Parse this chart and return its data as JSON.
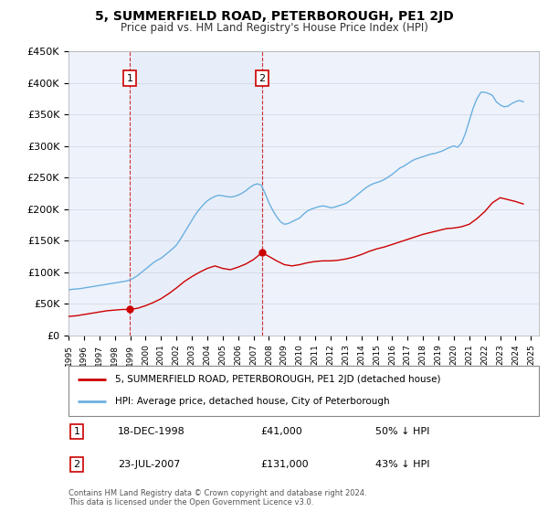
{
  "title": "5, SUMMERFIELD ROAD, PETERBOROUGH, PE1 2JD",
  "subtitle": "Price paid vs. HM Land Registry's House Price Index (HPI)",
  "background_color": "#ffffff",
  "plot_bg_color": "#eef2fb",
  "grid_color": "#d8dde8",
  "xlim": [
    1995.0,
    2025.5
  ],
  "ylim": [
    0,
    450000
  ],
  "yticks": [
    0,
    50000,
    100000,
    150000,
    200000,
    250000,
    300000,
    350000,
    400000,
    450000
  ],
  "ytick_labels": [
    "£0",
    "£50K",
    "£100K",
    "£150K",
    "£200K",
    "£250K",
    "£300K",
    "£350K",
    "£400K",
    "£450K"
  ],
  "xtick_years": [
    1995,
    1996,
    1997,
    1998,
    1999,
    2000,
    2001,
    2002,
    2003,
    2004,
    2005,
    2006,
    2007,
    2008,
    2009,
    2010,
    2011,
    2012,
    2013,
    2014,
    2015,
    2016,
    2017,
    2018,
    2019,
    2020,
    2021,
    2022,
    2023,
    2024,
    2025
  ],
  "hpi_line_color": "#6ab0e0",
  "price_line_color": "#cc0000",
  "marker_color": "#cc0000",
  "sale1_x": 1998.97,
  "sale1_y": 41000,
  "sale1_label": "1",
  "sale2_x": 2007.55,
  "sale2_y": 131000,
  "sale2_label": "2",
  "legend_house_label": "5, SUMMERFIELD ROAD, PETERBOROUGH, PE1 2JD (detached house)",
  "legend_hpi_label": "HPI: Average price, detached house, City of Peterborough",
  "table_row1": [
    "1",
    "18-DEC-1998",
    "£41,000",
    "50% ↓ HPI"
  ],
  "table_row2": [
    "2",
    "23-JUL-2007",
    "£131,000",
    "43% ↓ HPI"
  ],
  "footnote": "Contains HM Land Registry data © Crown copyright and database right 2024.\nThis data is licensed under the Open Government Licence v3.0.",
  "hpi_data_x": [
    1995.0,
    1995.25,
    1995.5,
    1995.75,
    1996.0,
    1996.25,
    1996.5,
    1996.75,
    1997.0,
    1997.25,
    1997.5,
    1997.75,
    1998.0,
    1998.25,
    1998.5,
    1998.75,
    1999.0,
    1999.25,
    1999.5,
    1999.75,
    2000.0,
    2000.25,
    2000.5,
    2000.75,
    2001.0,
    2001.25,
    2001.5,
    2001.75,
    2002.0,
    2002.25,
    2002.5,
    2002.75,
    2003.0,
    2003.25,
    2003.5,
    2003.75,
    2004.0,
    2004.25,
    2004.5,
    2004.75,
    2005.0,
    2005.25,
    2005.5,
    2005.75,
    2006.0,
    2006.25,
    2006.5,
    2006.75,
    2007.0,
    2007.25,
    2007.5,
    2007.75,
    2008.0,
    2008.25,
    2008.5,
    2008.75,
    2009.0,
    2009.25,
    2009.5,
    2009.75,
    2010.0,
    2010.25,
    2010.5,
    2010.75,
    2011.0,
    2011.25,
    2011.5,
    2011.75,
    2012.0,
    2012.25,
    2012.5,
    2012.75,
    2013.0,
    2013.25,
    2013.5,
    2013.75,
    2014.0,
    2014.25,
    2014.5,
    2014.75,
    2015.0,
    2015.25,
    2015.5,
    2015.75,
    2016.0,
    2016.25,
    2016.5,
    2016.75,
    2017.0,
    2017.25,
    2017.5,
    2017.75,
    2018.0,
    2018.25,
    2018.5,
    2018.75,
    2019.0,
    2019.25,
    2019.5,
    2019.75,
    2020.0,
    2020.25,
    2020.5,
    2020.75,
    2021.0,
    2021.25,
    2021.5,
    2021.75,
    2022.0,
    2022.25,
    2022.5,
    2022.75,
    2023.0,
    2023.25,
    2023.5,
    2023.75,
    2024.0,
    2024.25,
    2024.5
  ],
  "hpi_data_y": [
    72000,
    73000,
    73500,
    74000,
    75000,
    76000,
    77000,
    78000,
    79000,
    80000,
    81000,
    82000,
    83000,
    84000,
    85000,
    86000,
    88000,
    91000,
    95000,
    100000,
    105000,
    110000,
    115000,
    119000,
    122000,
    127000,
    132000,
    137000,
    143000,
    152000,
    162000,
    172000,
    182000,
    192000,
    200000,
    207000,
    213000,
    217000,
    220000,
    222000,
    221000,
    220000,
    219000,
    220000,
    222000,
    225000,
    229000,
    234000,
    238000,
    240000,
    238000,
    225000,
    210000,
    198000,
    188000,
    180000,
    176000,
    177000,
    180000,
    183000,
    186000,
    192000,
    197000,
    200000,
    202000,
    204000,
    205000,
    204000,
    202000,
    203000,
    205000,
    207000,
    209000,
    213000,
    218000,
    223000,
    228000,
    233000,
    237000,
    240000,
    242000,
    244000,
    247000,
    251000,
    255000,
    260000,
    265000,
    268000,
    272000,
    276000,
    279000,
    281000,
    283000,
    285000,
    287000,
    288000,
    290000,
    292000,
    295000,
    298000,
    300000,
    298000,
    305000,
    320000,
    340000,
    360000,
    375000,
    385000,
    385000,
    383000,
    380000,
    370000,
    365000,
    362000,
    363000,
    367000,
    370000,
    372000,
    370000
  ],
  "price_data_x_full": [
    1995.0,
    1995.5,
    1996.0,
    1996.5,
    1997.0,
    1997.5,
    1998.0,
    1998.5,
    1998.97,
    1999.5,
    2000.0,
    2000.5,
    2001.0,
    2001.5,
    2002.0,
    2002.5,
    2003.0,
    2003.5,
    2004.0,
    2004.5,
    2005.0,
    2005.5,
    2006.0,
    2006.5,
    2007.0,
    2007.55,
    2008.0,
    2008.5,
    2009.0,
    2009.5,
    2010.0,
    2010.5,
    2011.0,
    2011.5,
    2012.0,
    2012.5,
    2013.0,
    2013.5,
    2014.0,
    2014.5,
    2015.0,
    2015.5,
    2016.0,
    2016.5,
    2017.0,
    2017.5,
    2018.0,
    2018.5,
    2019.0,
    2019.5,
    2020.0,
    2020.5,
    2021.0,
    2021.5,
    2022.0,
    2022.5,
    2023.0,
    2023.5,
    2024.0,
    2024.5
  ],
  "price_data_y_full": [
    30000,
    31000,
    33000,
    35000,
    37000,
    39000,
    40000,
    41000,
    41000,
    43000,
    47000,
    52000,
    58000,
    66000,
    75000,
    85000,
    93000,
    100000,
    106000,
    110000,
    106000,
    104000,
    108000,
    113000,
    120000,
    131000,
    125000,
    118000,
    112000,
    110000,
    112000,
    115000,
    117000,
    118000,
    118000,
    119000,
    121000,
    124000,
    128000,
    133000,
    137000,
    140000,
    144000,
    148000,
    152000,
    156000,
    160000,
    163000,
    166000,
    169000,
    170000,
    172000,
    176000,
    185000,
    196000,
    210000,
    218000,
    215000,
    212000,
    208000
  ]
}
